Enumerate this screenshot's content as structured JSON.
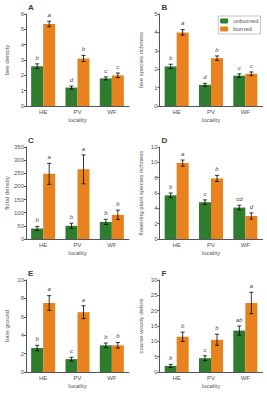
{
  "chart_data": [
    {
      "type": "bar",
      "title": "A",
      "xlabel": "locality",
      "ylabel": "bee density",
      "categories": [
        "HE",
        "PV",
        "WF"
      ],
      "series": [
        {
          "name": "unburned",
          "color": "#2e7d2e",
          "values": [
            2.6,
            1.2,
            1.8
          ],
          "errors": [
            0.15,
            0.1,
            0.1
          ],
          "letters": [
            "b",
            "d",
            "c"
          ]
        },
        {
          "name": "burned",
          "color": "#e8821e",
          "values": [
            5.35,
            3.1,
            2.0
          ],
          "errors": [
            0.18,
            0.2,
            0.15
          ],
          "letters": [
            "a",
            "b",
            "c"
          ]
        }
      ],
      "ylim": [
        0,
        6
      ],
      "yticks": [
        0,
        1,
        2,
        3,
        4,
        5,
        6
      ],
      "grid": false
    },
    {
      "type": "bar",
      "title": "B",
      "xlabel": "locality",
      "ylabel": "bee species richness",
      "categories": [
        "HE",
        "PV",
        "WF"
      ],
      "series": [
        {
          "name": "unburned",
          "color": "#2e7d2e",
          "values": [
            2.15,
            1.15,
            1.65
          ],
          "errors": [
            0.12,
            0.08,
            0.1
          ],
          "letters": [
            "b",
            "d",
            "c"
          ]
        },
        {
          "name": "burned",
          "color": "#e8821e",
          "values": [
            4.0,
            2.6,
            1.75
          ],
          "errors": [
            0.15,
            0.12,
            0.1
          ],
          "letters": [
            "a",
            "b",
            "c"
          ]
        }
      ],
      "ylim": [
        0,
        5
      ],
      "yticks": [
        0,
        1,
        2,
        3,
        4,
        5
      ],
      "grid": false,
      "legend": "upper right"
    },
    {
      "type": "bar",
      "title": "C",
      "xlabel": "locality",
      "ylabel": "floral density",
      "categories": [
        "HE",
        "PV",
        "WF"
      ],
      "series": [
        {
          "name": "unburned",
          "color": "#2e7d2e",
          "values": [
            40,
            50,
            65
          ],
          "errors": [
            8,
            10,
            10
          ],
          "letters": [
            "b",
            "b",
            "b"
          ]
        },
        {
          "name": "burned",
          "color": "#e8821e",
          "values": [
            248,
            265,
            92
          ],
          "errors": [
            40,
            55,
            18
          ],
          "letters": [
            "a",
            "a",
            "b"
          ]
        }
      ],
      "ylim": [
        0,
        350
      ],
      "yticks": [
        0,
        50,
        100,
        150,
        200,
        250,
        300,
        350
      ],
      "grid": false
    },
    {
      "type": "bar",
      "title": "D",
      "xlabel": "locality",
      "ylabel": "flowering plant species richness",
      "categories": [
        "HE",
        "PV",
        "WF"
      ],
      "series": [
        {
          "name": "unburned",
          "color": "#2e7d2e",
          "values": [
            5.7,
            4.8,
            4.1
          ],
          "errors": [
            0.3,
            0.3,
            0.3
          ],
          "letters": [
            "b",
            "c",
            "cd"
          ]
        },
        {
          "name": "burned",
          "color": "#e8821e",
          "values": [
            9.9,
            7.9,
            3.0
          ],
          "errors": [
            0.4,
            0.4,
            0.4
          ],
          "letters": [
            "a",
            "b",
            "d"
          ]
        }
      ],
      "ylim": [
        0,
        12
      ],
      "yticks": [
        0,
        2,
        4,
        6,
        8,
        10,
        12
      ],
      "grid": false
    },
    {
      "type": "bar",
      "title": "E",
      "xlabel": "locality",
      "ylabel": "bare ground",
      "categories": [
        "HE",
        "PV",
        "WF"
      ],
      "series": [
        {
          "name": "unburned",
          "color": "#2e7d2e",
          "values": [
            2.6,
            1.4,
            2.9
          ],
          "errors": [
            0.3,
            0.2,
            0.25
          ],
          "letters": [
            "b",
            "c",
            "b"
          ]
        },
        {
          "name": "burned",
          "color": "#e8821e",
          "values": [
            7.5,
            6.5,
            2.9
          ],
          "errors": [
            0.8,
            0.7,
            0.3
          ],
          "letters": [
            "a",
            "a",
            "b"
          ]
        }
      ],
      "ylim": [
        0,
        10
      ],
      "yticks": [
        0,
        2,
        4,
        6,
        8,
        10
      ],
      "grid": false
    },
    {
      "type": "bar",
      "title": "F",
      "xlabel": "locality",
      "ylabel": "coarse woody debris",
      "categories": [
        "HE",
        "PV",
        "WF"
      ],
      "series": [
        {
          "name": "unburned",
          "color": "#2e7d2e",
          "values": [
            2.0,
            4.5,
            13.5
          ],
          "errors": [
            0.5,
            0.8,
            1.5
          ],
          "letters": [
            "b",
            "c",
            "ab"
          ]
        },
        {
          "name": "burned",
          "color": "#e8821e",
          "values": [
            11.5,
            10.5,
            22.5
          ],
          "errors": [
            1.5,
            1.8,
            3.5
          ],
          "letters": [
            "b",
            "b",
            "a"
          ]
        }
      ],
      "ylim": [
        0,
        30
      ],
      "yticks": [
        0,
        5,
        10,
        15,
        20,
        25,
        30
      ],
      "grid": false
    }
  ]
}
